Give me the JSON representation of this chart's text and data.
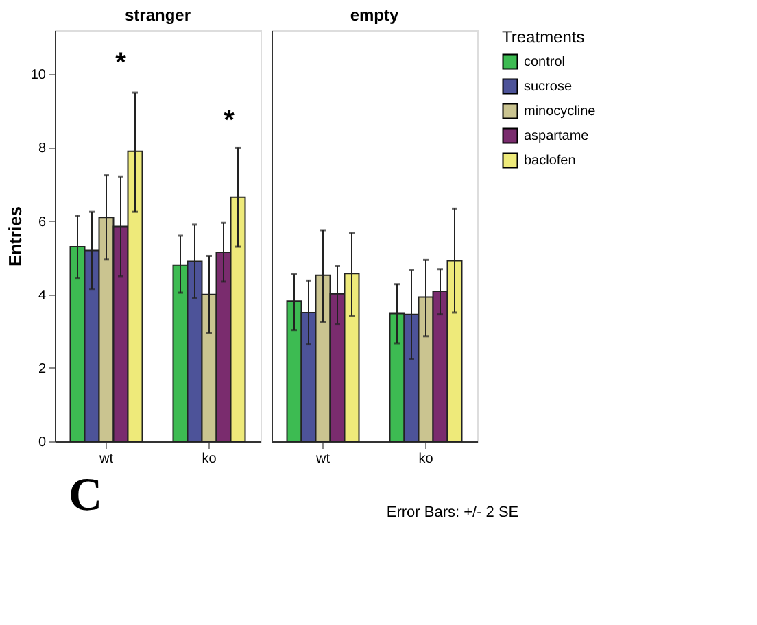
{
  "chart_data": [
    {
      "type": "bar",
      "title": "stranger",
      "ylabel": "Entries",
      "categories": [
        "wt",
        "ko"
      ],
      "ylim": [
        0,
        11.2
      ],
      "yticks": [
        0,
        2,
        4,
        6,
        8,
        10
      ],
      "grid": false,
      "legend": false,
      "series": [
        {
          "color": "#3dbb52",
          "values": [
            5.3,
            4.8
          ],
          "errors": [
            [
              4.45,
              6.15
            ],
            [
              4.05,
              5.6
            ]
          ]
        },
        {
          "color": "#4d5399",
          "values": [
            5.2,
            4.9
          ],
          "errors": [
            [
              4.15,
              6.25
            ],
            [
              3.9,
              5.9
            ]
          ]
        },
        {
          "color": "#cac490",
          "values": [
            6.1,
            4.0
          ],
          "errors": [
            [
              4.95,
              7.25
            ],
            [
              2.95,
              5.05
            ]
          ]
        },
        {
          "color": "#7a2c6e",
          "values": [
            5.85,
            5.15
          ],
          "errors": [
            [
              4.5,
              7.2
            ],
            [
              4.35,
              5.95
            ]
          ]
        },
        {
          "color": "#eeea7a",
          "values": [
            7.9,
            6.65
          ],
          "errors": [
            [
              6.25,
              9.5
            ],
            [
              5.3,
              8.0
            ]
          ]
        }
      ],
      "annotations": [
        "*",
        "*",
        "C",
        "Error Bars: +/- 2 SE"
      ]
    },
    {
      "type": "bar",
      "title": "empty",
      "categories": [
        "wt",
        "ko"
      ],
      "ylim": [
        0,
        11.2
      ],
      "yticks": [
        0,
        2,
        4,
        6,
        8,
        10
      ],
      "tick_labels": "x",
      "grid": false,
      "legend": "top right",
      "legend_title": "Treatments",
      "series": [
        {
          "name": "control",
          "color": "#3dbb52",
          "values": [
            3.82,
            3.48
          ],
          "errors": [
            [
              3.03,
              4.55
            ],
            [
              2.67,
              4.28
            ]
          ]
        },
        {
          "name": "sucrose",
          "color": "#4d5399",
          "values": [
            3.51,
            3.46
          ],
          "errors": [
            [
              2.64,
              4.38
            ],
            [
              2.24,
              4.66
            ]
          ]
        },
        {
          "name": "minocycline",
          "color": "#cac490",
          "values": [
            4.52,
            3.93
          ],
          "errors": [
            [
              3.25,
              5.75
            ],
            [
              2.86,
              4.94
            ]
          ]
        },
        {
          "name": "aspartame",
          "color": "#7a2c6e",
          "values": [
            4.02,
            4.09
          ],
          "errors": [
            [
              3.2,
              4.78
            ],
            [
              3.46,
              4.69
            ]
          ]
        },
        {
          "name": "baclofen",
          "color": "#eeea7a",
          "values": [
            4.57,
            4.92
          ],
          "errors": [
            [
              3.42,
              5.68
            ],
            [
              3.51,
              6.34
            ]
          ]
        }
      ]
    }
  ]
}
